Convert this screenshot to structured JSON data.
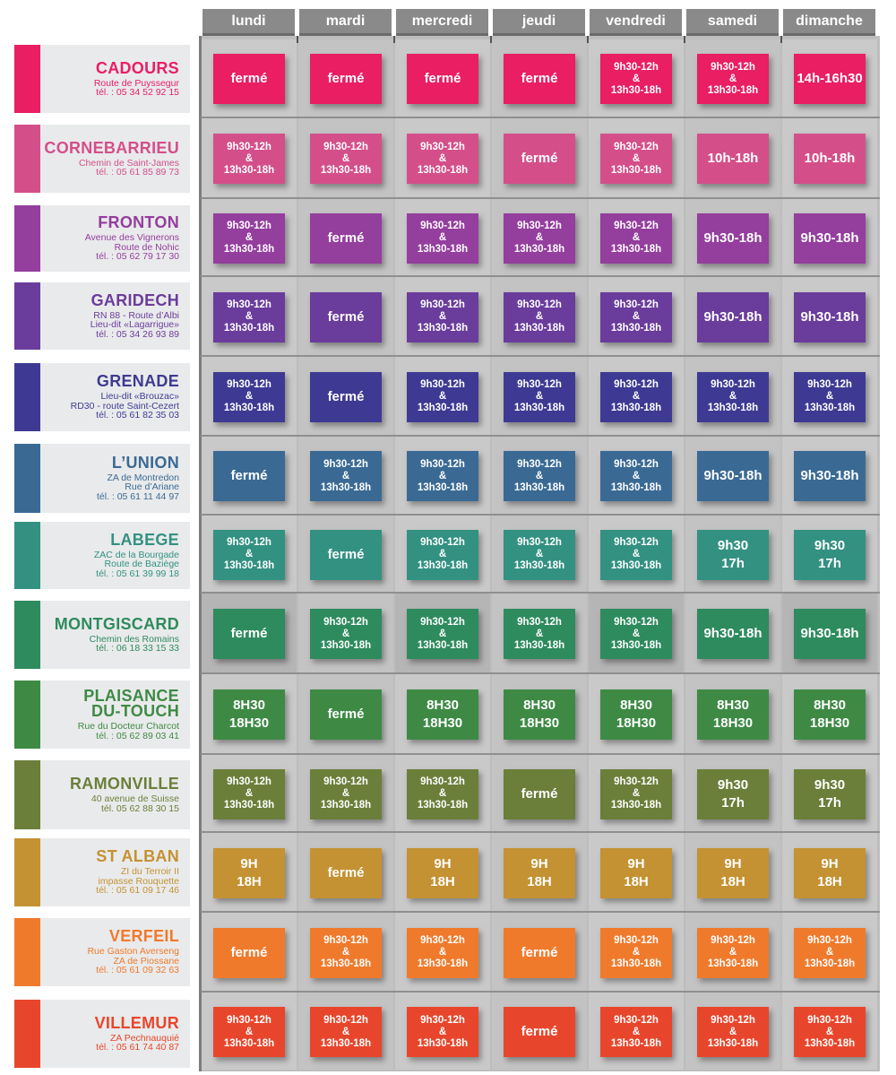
{
  "days": [
    "lundi",
    "mardi",
    "mercredi",
    "jeudi",
    "vendredi",
    "samedi",
    "dimanche"
  ],
  "locations": [
    {
      "name": "CADOURS",
      "address": "Route de Puyssegur\ntél. : 05 34 52 92 15",
      "color": "#e91e63",
      "hours": [
        "fermé",
        "fermé",
        "fermé",
        "fermé",
        "9h30-12h\n&\n13h30-18h",
        "9h30-12h\n&\n13h30-18h",
        "14h-16h30"
      ]
    },
    {
      "name": "CORNEBARRIEU",
      "address": "Chemin de Saint-James\ntél. : 05 61 85 89 73",
      "color": "#d44f8a",
      "hours": [
        "9h30-12h\n&\n13h30-18h",
        "9h30-12h\n&\n13h30-18h",
        "9h30-12h\n&\n13h30-18h",
        "fermé",
        "9h30-12h\n&\n13h30-18h",
        "10h-18h",
        "10h-18h"
      ]
    },
    {
      "name": "FRONTON",
      "address": "Avenue des Vignerons\nRoute de Nohic\ntél. : 05 62 79 17 30",
      "color": "#943e9e",
      "hours": [
        "9h30-12h\n&\n13h30-18h",
        "fermé",
        "9h30-12h\n&\n13h30-18h",
        "9h30-12h\n&\n13h30-18h",
        "9h30-12h\n&\n13h30-18h",
        "9h30-18h",
        "9h30-18h"
      ]
    },
    {
      "name": "GARIDECH",
      "address": "RN 88 - Route d’Albi\nLieu-dit «Lagarrigue»\ntél. : 05 34 26 93 89",
      "color": "#6a3c9c",
      "hours": [
        "9h30-12h\n&\n13h30-18h",
        "fermé",
        "9h30-12h\n&\n13h30-18h",
        "9h30-12h\n&\n13h30-18h",
        "9h30-12h\n&\n13h30-18h",
        "9h30-18h",
        "9h30-18h"
      ]
    },
    {
      "name": "GRENADE",
      "address": "Lieu-dit «Brouzac»\nRD30 - route Saint-Cezert\ntél. : 05 61 82 35 03",
      "color": "#3e3a93",
      "hours": [
        "9h30-12h\n&\n13h30-18h",
        "fermé",
        "9h30-12h\n&\n13h30-18h",
        "9h30-12h\n&\n13h30-18h",
        "9h30-12h\n&\n13h30-18h",
        "9h30-12h\n&\n13h30-18h",
        "9h30-12h\n&\n13h30-18h"
      ]
    },
    {
      "name": "L’UNION",
      "address": "ZA de Montredon\nRue d’Ariane\ntél. : 05 61 11 44 97",
      "color": "#3a6a94",
      "hours": [
        "fermé",
        "9h30-12h\n&\n13h30-18h",
        "9h30-12h\n&\n13h30-18h",
        "9h30-12h\n&\n13h30-18h",
        "9h30-12h\n&\n13h30-18h",
        "9h30-18h",
        "9h30-18h"
      ]
    },
    {
      "name": "LABEGE",
      "address": "ZAC de la Bourgade\nRoute de Baziège\ntél. : 05 61 39 99 18",
      "color": "#339182",
      "hours": [
        "9h30-12h\n&\n13h30-18h",
        "fermé",
        "9h30-12h\n&\n13h30-18h",
        "9h30-12h\n&\n13h30-18h",
        "9h30-12h\n&\n13h30-18h",
        "9h30\n17h",
        "9h30\n17h"
      ]
    },
    {
      "name": "MONTGISCARD",
      "address": "Chemin des Romains\ntél. : 06 18 33 15 33",
      "color": "#2e8b5e",
      "hours": [
        "fermé",
        "9h30-12h\n&\n13h30-18h",
        "9h30-12h\n&\n13h30-18h",
        "9h30-12h\n&\n13h30-18h",
        "9h30-12h\n&\n13h30-18h",
        "9h30-18h",
        "9h30-18h"
      ]
    },
    {
      "name": "PLAISANCE\nDU-TOUCH",
      "address": "Rue du Docteur Charcot\ntél. : 05 62 89 03 41",
      "color": "#3e8a45",
      "hours": [
        "8H30\n18H30",
        "fermé",
        "8H30\n18H30",
        "8H30\n18H30",
        "8H30\n18H30",
        "8H30\n18H30",
        "8H30\n18H30"
      ]
    },
    {
      "name": "RAMONVILLE",
      "address": "40 avenue de Suisse\ntél. 05 62 88 30 15",
      "color": "#6b7f3a",
      "hours": [
        "9h30-12h\n&\n13h30-18h",
        "9h30-12h\n&\n13h30-18h",
        "9h30-12h\n&\n13h30-18h",
        "fermé",
        "9h30-12h\n&\n13h30-18h",
        "9h30\n17h",
        "9h30\n17h"
      ]
    },
    {
      "name": "ST ALBAN",
      "address": "ZI du Terroir II\nimpasse Rouquette\ntél. : 05 61 09 17 46",
      "color": "#c49232",
      "hours": [
        "9H\n18H",
        "fermé",
        "9H\n18H",
        "9H\n18H",
        "9H\n18H",
        "9H\n18H",
        "9H\n18H"
      ]
    },
    {
      "name": "VERFEIL",
      "address": "Rue Gaston Averseng\nZA de Piossane\ntél. : 05 61 09 32 63",
      "color": "#f07a2c",
      "hours": [
        "fermé",
        "9h30-12h\n&\n13h30-18h",
        "9h30-12h\n&\n13h30-18h",
        "fermé",
        "9h30-12h\n&\n13h30-18h",
        "9h30-12h\n&\n13h30-18h",
        "9h30-12h\n&\n13h30-18h"
      ]
    },
    {
      "name": "VILLEMUR",
      "address": "ZA Pechnauquié\ntél. : 05 61 74 40 87",
      "color": "#e8462c",
      "hours": [
        "9h30-12h\n&\n13h30-18h",
        "9h30-12h\n&\n13h30-18h",
        "9h30-12h\n&\n13h30-18h",
        "fermé",
        "9h30-12h\n&\n13h30-18h",
        "9h30-12h\n&\n13h30-18h",
        "9h30-12h\n&\n13h30-18h"
      ]
    }
  ]
}
